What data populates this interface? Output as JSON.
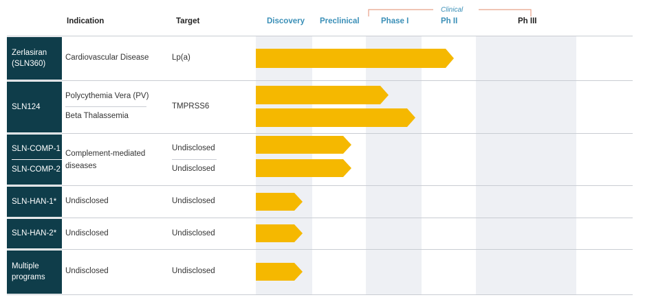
{
  "header": {
    "indication": "Indication",
    "target": "Target",
    "stages": [
      "Discovery",
      "Preclinical",
      "Phase I",
      "Ph II",
      "Ph III"
    ],
    "clinical": "Clinical"
  },
  "rows": [
    {
      "programs": [
        "Zerlasiran (SLN360)"
      ],
      "indications": [
        "Cardiovascular Disease"
      ],
      "targets": [
        "Lp(a)"
      ]
    },
    {
      "programs": [
        "SLN124"
      ],
      "indications": [
        "Polycythemia Vera (PV)",
        "Beta Thalassemia"
      ],
      "targets": [
        "TMPRSS6"
      ]
    },
    {
      "programs": [
        "SLN-COMP-1",
        "SLN-COMP-2"
      ],
      "indications": [
        "Complement-mediated diseases"
      ],
      "targets": [
        "Undisclosed",
        "Undisclosed"
      ]
    },
    {
      "programs": [
        "SLN-HAN-1*"
      ],
      "indications": [
        "Undisclosed"
      ],
      "targets": [
        "Undisclosed"
      ]
    },
    {
      "programs": [
        "SLN-HAN-2*"
      ],
      "indications": [
        "Undisclosed"
      ],
      "targets": [
        "Undisclosed"
      ]
    },
    {
      "programs": [
        "Multiple programs"
      ],
      "indications": [
        "Undisclosed"
      ],
      "targets": [
        "Undisclosed"
      ]
    }
  ]
}
